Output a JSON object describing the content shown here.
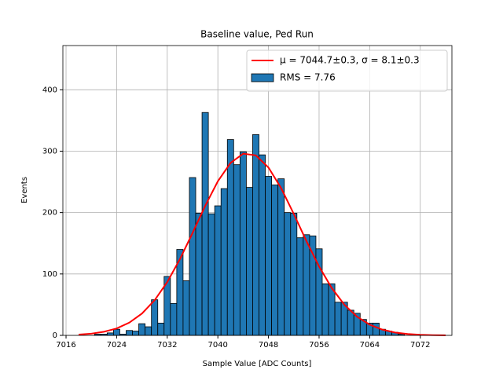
{
  "chart_data": {
    "type": "histogram",
    "title": "Baseline value, Ped Run",
    "xlabel": "Sample Value [ADC Counts]",
    "ylabel": "Events",
    "bins": [
      7020.5,
      7021.5,
      7022.5,
      7023.5,
      7024.5,
      7025.5,
      7026.5,
      7027.5,
      7028.5,
      7029.5,
      7030.5,
      7031.5,
      7032.5,
      7033.5,
      7034.5,
      7035.5,
      7036.5,
      7037.5,
      7038.5,
      7039.5,
      7040.5,
      7041.5,
      7042.5,
      7043.5,
      7044.5,
      7045.5,
      7046.5,
      7047.5,
      7048.5,
      7049.5,
      7050.5,
      7051.5,
      7052.5,
      7053.5,
      7054.5,
      7055.5,
      7056.5,
      7057.5,
      7058.5,
      7059.5,
      7060.5,
      7061.5,
      7062.5,
      7063.5,
      7064.5,
      7065.5,
      7066.5,
      7067.5,
      7068.5,
      7069.5
    ],
    "series": [
      {
        "name": "μ = 7044.7±0.3, σ = 8.1±0.3",
        "type": "line",
        "color": "#ff0000",
        "x": [
          7018,
          7020,
          7022,
          7024,
          7026,
          7028,
          7030,
          7032,
          7034,
          7036,
          7038,
          7040,
          7042,
          7044,
          7046,
          7048,
          7050,
          7052,
          7054,
          7056,
          7058,
          7060,
          7062,
          7064,
          7066,
          7068,
          7070,
          7072,
          7074,
          7076
        ],
        "values": [
          1.3,
          2.8,
          5.9,
          11.3,
          20.7,
          35.5,
          57.2,
          86.9,
          124.1,
          166.8,
          211.0,
          251.0,
          280.9,
          295.9,
          293.2,
          273.4,
          239.8,
          197.9,
          153.6,
          112.2,
          77.2,
          49.9,
          30.4,
          17.4,
          9.4,
          4.7,
          2.3,
          1.0,
          0.4,
          0.2
        ]
      },
      {
        "name": "RMS = 7.76",
        "type": "histogram",
        "color": "#1f77b4",
        "values": [
          2,
          2,
          4,
          10,
          2,
          8,
          7,
          19,
          14,
          58,
          20,
          96,
          52,
          140,
          89,
          257,
          199,
          363,
          198,
          211,
          239,
          319,
          278,
          299,
          241,
          327,
          294,
          259,
          245,
          255,
          200,
          199,
          159,
          164,
          162,
          141,
          84,
          84,
          54,
          54,
          41,
          36,
          26,
          20,
          20,
          10,
          7,
          5,
          2
        ]
      }
    ],
    "xlim": [
      7015.5,
      7077
    ],
    "xticks": [
      7016,
      7024,
      7032,
      7040,
      7048,
      7056,
      7064,
      7072
    ],
    "ylim": [
      0,
      472
    ],
    "yticks": [
      0,
      100,
      200,
      300,
      400
    ],
    "grid": true,
    "legend": "upper right"
  }
}
